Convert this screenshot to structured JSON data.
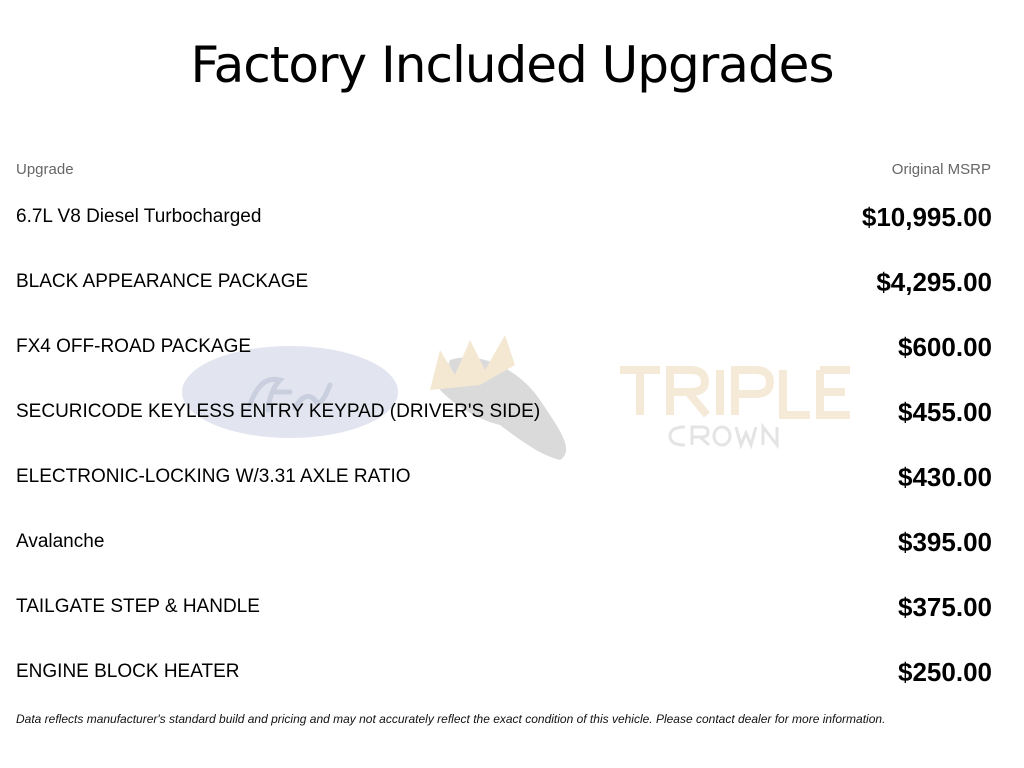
{
  "title": "Factory Included Upgrades",
  "watermark": {
    "brand_left": "Ford",
    "brand_right_line1": "TRIPLE",
    "brand_right_line2": "CROWN"
  },
  "columns": {
    "upgrade": "Upgrade",
    "msrp": "Original MSRP"
  },
  "rows": [
    {
      "name": "6.7L V8 Diesel Turbocharged",
      "price": "$10,995.00"
    },
    {
      "name": "BLACK APPEARANCE PACKAGE",
      "price": "$4,295.00"
    },
    {
      "name": "FX4 OFF-ROAD PACKAGE",
      "price": "$600.00"
    },
    {
      "name": "SECURICODE KEYLESS ENTRY KEYPAD (DRIVER'S SIDE)",
      "price": "$455.00"
    },
    {
      "name": "ELECTRONIC-LOCKING W/3.31 AXLE RATIO",
      "price": "$430.00"
    },
    {
      "name": "Avalanche",
      "price": "$395.00"
    },
    {
      "name": "TAILGATE STEP & HANDLE",
      "price": "$375.00"
    },
    {
      "name": "ENGINE BLOCK HEATER",
      "price": "$250.00"
    }
  ],
  "disclaimer": "Data reflects manufacturer's standard build and pricing and may not accurately reflect the exact condition of this vehicle. Please contact dealer for more information."
}
